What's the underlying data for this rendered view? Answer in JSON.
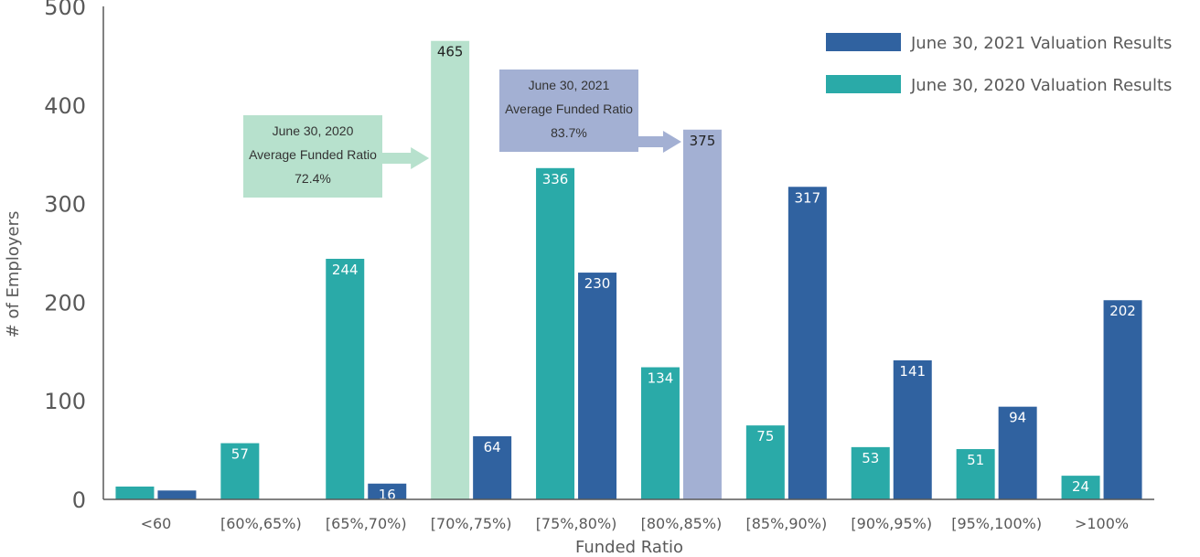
{
  "chart_data": {
    "type": "bar",
    "xlabel": "Funded Ratio",
    "ylabel": "# of Employers",
    "ylim": [
      0,
      500
    ],
    "yticks": [
      0,
      100,
      200,
      300,
      400,
      500
    ],
    "grid": false,
    "legend_position": "top-right",
    "categories": [
      "<60",
      "[60%,65%)",
      "[65%,70%)",
      "[70%,75%)",
      "[75%,80%)",
      "[80%,85%)",
      "[85%,90%)",
      "[90%,95%)",
      "[95%,100%)",
      ">100%"
    ],
    "series": [
      {
        "name": "June 30, 2020 Valuation Results",
        "color": "#2aaaa8",
        "values": [
          13,
          57,
          244,
          465,
          336,
          134,
          75,
          53,
          51,
          24
        ],
        "labels": [
          "",
          "57",
          "244",
          "465",
          "336",
          "134",
          "75",
          "53",
          "51",
          "24"
        ]
      },
      {
        "name": "June 30, 2021 Valuation Results",
        "color": "#3062a0",
        "values": [
          9,
          0,
          16,
          64,
          230,
          375,
          317,
          141,
          94,
          202
        ],
        "labels": [
          "",
          "",
          "16",
          "64",
          "230",
          "375",
          "317",
          "141",
          "94",
          "202"
        ]
      }
    ],
    "highlighted_bars": [
      {
        "series": 0,
        "category": 3,
        "color": "#b7e1cd"
      },
      {
        "series": 1,
        "category": 5,
        "color": "#a3b0d3"
      }
    ],
    "annotations": [
      {
        "lines": [
          "June 30, 2020",
          "Average Funded Ratio",
          "72.4%"
        ],
        "color": "#b7e1cd",
        "points_to": {
          "series": 0,
          "category": 3
        }
      },
      {
        "lines": [
          "June 30, 2021",
          "Average Funded Ratio",
          "83.7%"
        ],
        "color": "#a3b0d3",
        "points_to": {
          "series": 1,
          "category": 5
        }
      }
    ]
  }
}
